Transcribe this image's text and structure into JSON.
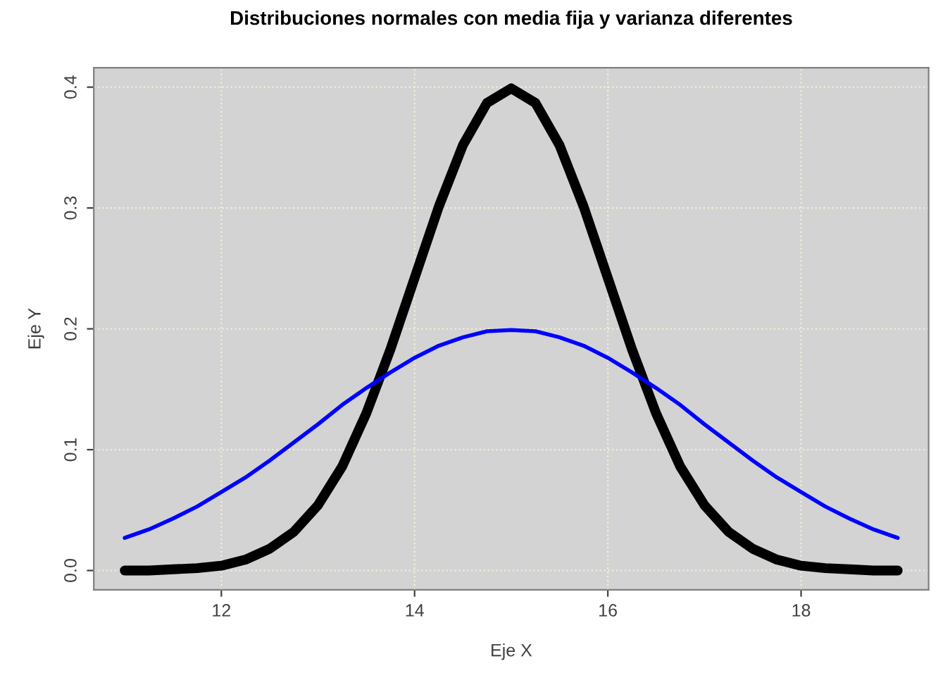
{
  "chart_data": {
    "type": "line",
    "title": "Distribuciones normales con media fija y varianza diferentes",
    "xlabel": "Eje X",
    "ylabel": "Eje Y",
    "x": [
      11,
      11.25,
      11.5,
      11.75,
      12,
      12.25,
      12.5,
      12.75,
      13,
      13.25,
      13.5,
      13.75,
      14,
      14.25,
      14.5,
      14.75,
      15,
      15.25,
      15.5,
      15.75,
      16,
      16.25,
      16.5,
      16.75,
      17,
      17.25,
      17.5,
      17.75,
      18,
      18.25,
      18.5,
      18.75,
      19
    ],
    "series": [
      {
        "color": "#000000",
        "values": [
          0.0,
          0.0,
          0.001,
          0.002,
          0.004,
          0.009,
          0.018,
          0.032,
          0.054,
          0.086,
          0.13,
          0.183,
          0.242,
          0.301,
          0.352,
          0.387,
          0.399,
          0.387,
          0.352,
          0.301,
          0.242,
          0.183,
          0.13,
          0.086,
          0.054,
          0.032,
          0.018,
          0.009,
          0.004,
          0.002,
          0.001,
          0.0,
          0.0
        ]
      },
      {
        "color": "#0000ff",
        "values": [
          0.027,
          0.034,
          0.043,
          0.053,
          0.065,
          0.077,
          0.091,
          0.106,
          0.121,
          0.137,
          0.151,
          0.164,
          0.176,
          0.186,
          0.193,
          0.198,
          0.199,
          0.198,
          0.193,
          0.186,
          0.176,
          0.164,
          0.151,
          0.137,
          0.121,
          0.106,
          0.091,
          0.077,
          0.065,
          0.053,
          0.043,
          0.034,
          0.027
        ]
      }
    ],
    "xlim": [
      10.68,
      19.32
    ],
    "ylim": [
      -0.016,
      0.416
    ],
    "xticks": [
      12,
      14,
      16,
      18
    ],
    "yticks": [
      {
        "value": 0,
        "label": "0.0"
      },
      0.1,
      0.2,
      0.3,
      0.4
    ],
    "grid": true
  }
}
